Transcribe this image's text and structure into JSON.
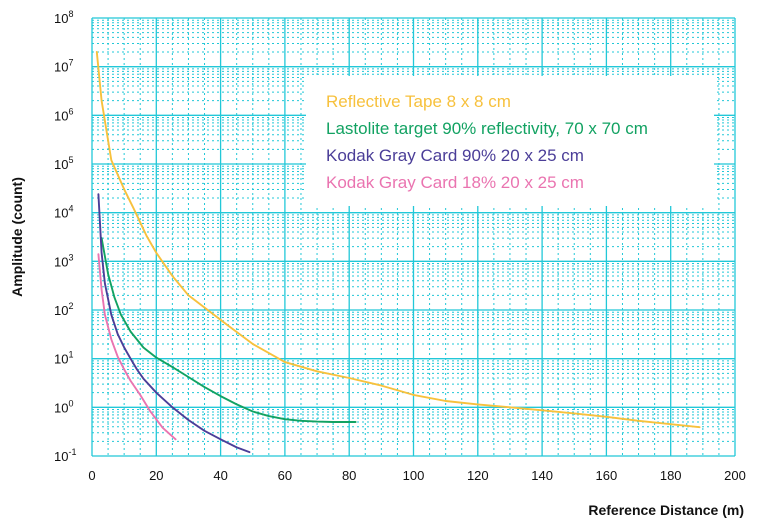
{
  "chart_data": {
    "type": "line",
    "title": "",
    "xlabel": "Reference Distance (m)",
    "ylabel": "Amplitude (count)",
    "xlim": [
      0,
      200
    ],
    "ylim": [
      0.1,
      100000000
    ],
    "y_scale": "log",
    "grid": true,
    "grid_color": "#22c8d8",
    "legend_position": "top-right",
    "legend_background": "#ffffff",
    "x_ticks": [
      "0",
      "20",
      "40",
      "60",
      "80",
      "100",
      "120",
      "140",
      "160",
      "180",
      "200"
    ],
    "x_tick_values": [
      0,
      20,
      40,
      60,
      80,
      100,
      120,
      140,
      160,
      180,
      200
    ],
    "y_ticks": [
      {
        "value": 0.1,
        "base": "10",
        "exp": "-1"
      },
      {
        "value": 1,
        "base": "10",
        "exp": "0"
      },
      {
        "value": 10,
        "base": "10",
        "exp": "1"
      },
      {
        "value": 100,
        "base": "10",
        "exp": "2"
      },
      {
        "value": 1000,
        "base": "10",
        "exp": "3"
      },
      {
        "value": 10000,
        "base": "10",
        "exp": "4"
      },
      {
        "value": 100000,
        "base": "10",
        "exp": "5"
      },
      {
        "value": 1000000,
        "base": "10",
        "exp": "6"
      },
      {
        "value": 10000000,
        "base": "10",
        "exp": "7"
      },
      {
        "value": 100000000,
        "base": "10",
        "exp": "8"
      }
    ],
    "series": [
      {
        "name": "Reflective Tape 8 x 8 cm",
        "color": "#f7c13d",
        "x": [
          1.5,
          3,
          6,
          10,
          13,
          17,
          20,
          25,
          30,
          36,
          42,
          50,
          60,
          70,
          80,
          90,
          100,
          110,
          120,
          130,
          140,
          150,
          160,
          170,
          180,
          189
        ],
        "y": [
          20000000,
          2000000,
          120000,
          30000,
          12000,
          3300,
          1500,
          500,
          200,
          100,
          50,
          20,
          8.5,
          5.5,
          4,
          2.8,
          1.8,
          1.35,
          1.15,
          1.0,
          0.87,
          0.75,
          0.64,
          0.53,
          0.45,
          0.39
        ]
      },
      {
        "name": "Lastolite target 90% reflectivity, 70 x 70 cm",
        "color": "#12a262",
        "x": [
          3,
          5,
          7,
          9,
          12,
          16,
          20,
          25,
          30,
          35,
          40,
          45,
          50,
          55,
          60,
          65,
          70,
          75,
          82
        ],
        "y": [
          3000,
          550,
          180,
          80,
          36,
          17,
          10.5,
          6.7,
          4.2,
          2.6,
          1.7,
          1.15,
          0.82,
          0.66,
          0.57,
          0.53,
          0.51,
          0.5,
          0.5
        ]
      },
      {
        "name": "Kodak Gray Card 90% 20 x 25 cm",
        "color": "#4b3e98",
        "x": [
          2,
          3,
          4,
          6,
          8,
          10,
          12,
          14,
          16,
          20,
          25,
          30,
          35,
          40,
          45,
          49
        ],
        "y": [
          24000,
          1500,
          350,
          80,
          32,
          17,
          10,
          6,
          3.9,
          2,
          1,
          0.55,
          0.33,
          0.22,
          0.15,
          0.12
        ]
      },
      {
        "name": "Kodak Gray Card 18% 20 x 25 cm",
        "color": "#ea74b0",
        "x": [
          2,
          3,
          4,
          6,
          8,
          10,
          12,
          15,
          18,
          22,
          26
        ],
        "y": [
          1400,
          260,
          80,
          25,
          11,
          6,
          3.5,
          1.8,
          0.85,
          0.38,
          0.22
        ]
      }
    ]
  }
}
